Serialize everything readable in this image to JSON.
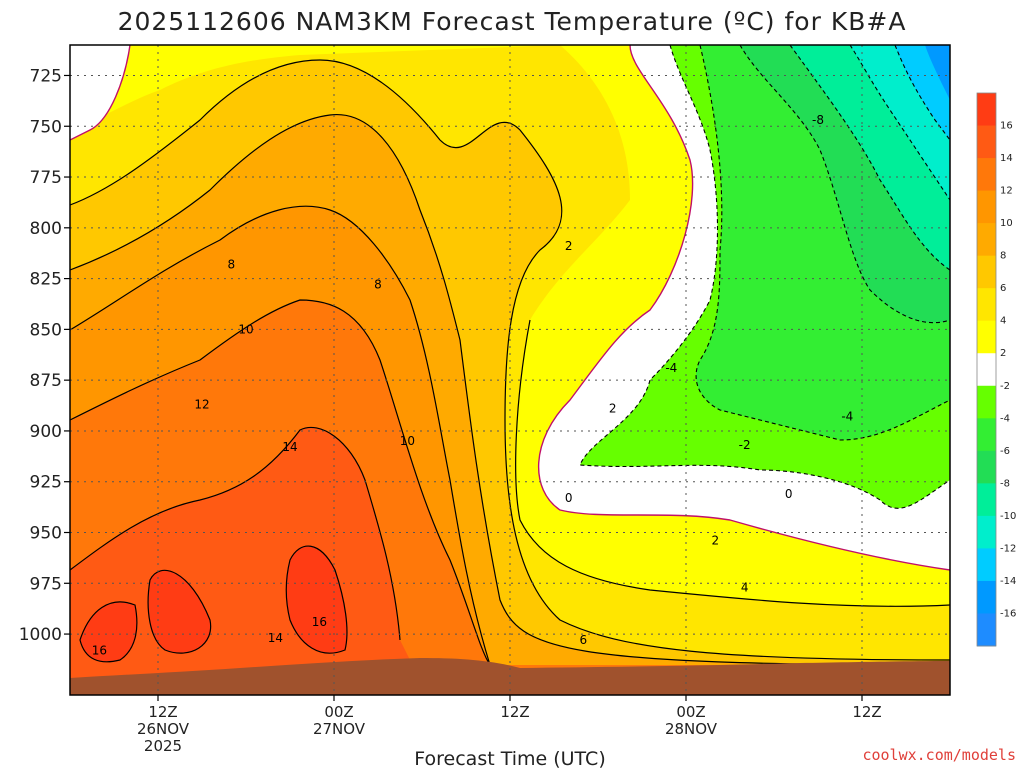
{
  "chart_data": {
    "type": "heatmap",
    "title": "2025112606 NAM3KM Forecast Temperature (ºC) for KB#A",
    "xlabel": "Forecast Time (UTC)",
    "ylabel": "",
    "credit": "coolwx.com/models",
    "y_ticks": [
      "725",
      "750",
      "775",
      "800",
      "825",
      "850",
      "875",
      "900",
      "925",
      "950",
      "975",
      "1000"
    ],
    "y_values": [
      725,
      750,
      775,
      800,
      825,
      850,
      875,
      900,
      925,
      950,
      975,
      1000
    ],
    "x_ticks": [
      {
        "hour": "12Z",
        "date": "26NOV",
        "year": "2025",
        "x_hours": 6
      },
      {
        "hour": "00Z",
        "date": "27NOV",
        "year": "",
        "x_hours": 18
      },
      {
        "hour": "12Z",
        "date": "",
        "year": "",
        "x_hours": 30
      },
      {
        "hour": "00Z",
        "date": "28NOV",
        "year": "",
        "x_hours": 42
      },
      {
        "hour": "12Z",
        "date": "",
        "year": "",
        "x_hours": 54
      }
    ],
    "xlim_hours": [
      0,
      60
    ],
    "ylim_hpa": [
      710,
      1030
    ],
    "grid": true,
    "colorbar": {
      "labels": [
        "16",
        "14",
        "12",
        "10",
        "8",
        "6",
        "4",
        "2",
        "-2",
        "-4",
        "-6",
        "-8",
        "-10",
        "-12",
        "-14",
        "-16"
      ],
      "colors": [
        "#ff3c14",
        "#ff5a14",
        "#ff780a",
        "#ff9600",
        "#ffaa00",
        "#ffc800",
        "#ffe600",
        "#ffff00",
        "#ffffff",
        "#66ff00",
        "#33ee33",
        "#22dd55",
        "#00ee99",
        "#00eecc",
        "#00ccff",
        "#0099ff",
        "#1e8cff"
      ]
    },
    "contour_labels": [
      {
        "text": "8",
        "h": 11.0,
        "p": 818
      },
      {
        "text": "8",
        "h": 21.0,
        "p": 828
      },
      {
        "text": "10",
        "h": 12.0,
        "p": 850
      },
      {
        "text": "10",
        "h": 23.0,
        "p": 905
      },
      {
        "text": "12",
        "h": 9.0,
        "p": 887
      },
      {
        "text": "14",
        "h": 15.0,
        "p": 908
      },
      {
        "text": "16",
        "h": 2.0,
        "p": 1008
      },
      {
        "text": "16",
        "h": 17.0,
        "p": 994
      },
      {
        "text": "14",
        "h": 14.0,
        "p": 1002
      },
      {
        "text": "6",
        "h": 35.0,
        "p": 1003
      },
      {
        "text": "4",
        "h": 46.0,
        "p": 977
      },
      {
        "text": "2",
        "h": 44.0,
        "p": 954
      },
      {
        "text": "2",
        "h": 34.0,
        "p": 809
      },
      {
        "text": "2",
        "h": 37.0,
        "p": 889
      },
      {
        "text": "0",
        "h": 34.0,
        "p": 933
      },
      {
        "text": "0",
        "h": 49.0,
        "p": 931
      },
      {
        "text": "-2",
        "h": 46.0,
        "p": 907
      },
      {
        "text": "-4",
        "h": 41.0,
        "p": 869
      },
      {
        "text": "-4",
        "h": 53.0,
        "p": 893
      },
      {
        "text": "-8",
        "h": 51.0,
        "p": 747
      }
    ],
    "surface_color": "#a0522d"
  }
}
